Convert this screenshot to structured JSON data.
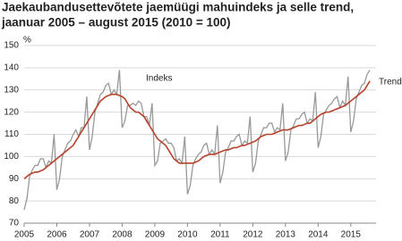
{
  "chart_data": {
    "type": "line",
    "title": [
      "Jaekaubandusettevõtete jaemüügi mahuindeks ja selle trend,",
      "jaanuar 2005 – august 2015 (2010 = 100)"
    ],
    "y_label": "%",
    "annotations": [
      "Indeks",
      "Trend"
    ],
    "categories": [
      "2005",
      null,
      null,
      null,
      null,
      null,
      null,
      null,
      null,
      null,
      null,
      null,
      "2006",
      null,
      null,
      null,
      null,
      null,
      null,
      null,
      null,
      null,
      null,
      null,
      "2007",
      null,
      null,
      null,
      null,
      null,
      null,
      null,
      null,
      null,
      null,
      null,
      "2008",
      null,
      null,
      null,
      null,
      null,
      null,
      null,
      null,
      null,
      null,
      null,
      "2009",
      null,
      null,
      null,
      null,
      null,
      null,
      null,
      null,
      null,
      null,
      null,
      "2010",
      null,
      null,
      null,
      null,
      null,
      null,
      null,
      null,
      null,
      null,
      null,
      "2011",
      null,
      null,
      null,
      null,
      null,
      null,
      null,
      null,
      null,
      null,
      null,
      "2012",
      null,
      null,
      null,
      null,
      null,
      null,
      null,
      null,
      null,
      null,
      null,
      "2013",
      null,
      null,
      null,
      null,
      null,
      null,
      null,
      null,
      null,
      null,
      null,
      "2014",
      null,
      null,
      null,
      null,
      null,
      null,
      null,
      null,
      null,
      null,
      null,
      "2015",
      null,
      null,
      null,
      null,
      null,
      null,
      null
    ],
    "series": [
      {
        "name": "Indeks",
        "color": "#999999",
        "values": [
          76,
          81,
          91,
          94,
          96,
          96,
          99,
          99,
          95,
          98,
          97,
          110,
          85,
          90,
          100,
          103,
          106,
          107,
          110,
          112,
          109,
          113,
          113,
          127,
          103,
          109,
          120,
          124,
          128,
          129,
          132,
          133,
          128,
          130,
          128,
          139,
          113,
          116,
          123,
          123,
          124,
          123,
          125,
          124,
          118,
          118,
          114,
          124,
          96,
          98,
          106,
          107,
          108,
          106,
          106,
          104,
          98,
          99,
          97,
          109,
          83,
          87,
          96,
          99,
          101,
          102,
          105,
          106,
          101,
          103,
          101,
          114,
          88,
          93,
          102,
          104,
          107,
          107,
          109,
          110,
          105,
          107,
          106,
          118,
          93,
          97,
          107,
          110,
          113,
          113,
          115,
          115,
          111,
          113,
          112,
          124,
          98,
          102,
          112,
          114,
          117,
          117,
          119,
          120,
          115,
          117,
          116,
          129,
          104,
          109,
          119,
          121,
          123,
          124,
          126,
          127,
          122,
          125,
          123,
          136,
          111,
          116,
          126,
          129,
          132,
          133,
          137,
          139
        ]
      },
      {
        "name": "Trend",
        "color": "#b5432b",
        "values": [
          90,
          91,
          92,
          92.5,
          93,
          93,
          93.5,
          94,
          95,
          96,
          97,
          98,
          99,
          100,
          101,
          102,
          103,
          104,
          105,
          107,
          109,
          111,
          113,
          115,
          117,
          119,
          121,
          123,
          125,
          126,
          127,
          127.5,
          128,
          128,
          128,
          127.5,
          127,
          126,
          124,
          122,
          121,
          120,
          120,
          119,
          118,
          116,
          114,
          112,
          110,
          108,
          107,
          106,
          105,
          103,
          101,
          99,
          98,
          97,
          97,
          97,
          97,
          97,
          97,
          97.5,
          98,
          99,
          100,
          100.5,
          101,
          101,
          101,
          101.5,
          102,
          102.5,
          103,
          103,
          103.5,
          104,
          104,
          104.5,
          105,
          105,
          105.5,
          106,
          106.5,
          107,
          108,
          109,
          109.5,
          110,
          110,
          110,
          110.5,
          111,
          111.5,
          112,
          112,
          112,
          112.5,
          113,
          113.5,
          114,
          114,
          114.5,
          115,
          115,
          116,
          117,
          118,
          119,
          119.5,
          120,
          120,
          120.5,
          121,
          121.5,
          122,
          122.5,
          123,
          124,
          125,
          126,
          127,
          128,
          129,
          130,
          132,
          134
        ]
      }
    ],
    "ylim": [
      70,
      150
    ],
    "yticks": [
      70,
      80,
      90,
      100,
      110,
      120,
      130,
      140,
      150
    ],
    "grid": true
  }
}
